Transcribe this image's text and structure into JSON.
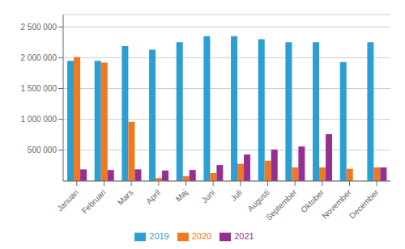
{
  "chart_data": {
    "type": "bar",
    "categories": [
      "Januari",
      "Februari",
      "Mars",
      "April",
      "Maj",
      "Juni",
      "Juli",
      "Augusti",
      "September",
      "Oktober",
      "November",
      "December"
    ],
    "series": [
      {
        "name": "2019",
        "color": "#2b9fd4",
        "values": [
          1950000,
          1950000,
          2190000,
          2130000,
          2250000,
          2350000,
          2350000,
          2300000,
          2250000,
          2250000,
          1930000,
          2250000
        ]
      },
      {
        "name": "2020",
        "color": "#f07820",
        "values": [
          2010000,
          1920000,
          960000,
          50000,
          80000,
          130000,
          280000,
          330000,
          220000,
          220000,
          200000,
          220000
        ]
      },
      {
        "name": "2021",
        "color": "#963090",
        "values": [
          190000,
          180000,
          190000,
          170000,
          180000,
          260000,
          430000,
          510000,
          560000,
          760000,
          0,
          220000
        ]
      }
    ],
    "ylim": [
      0,
      2700000
    ],
    "yticks": [
      {
        "value": 500000,
        "label": "500 000"
      },
      {
        "value": 1000000,
        "label": "1 000 000"
      },
      {
        "value": 1500000,
        "label": "1 500 000"
      },
      {
        "value": 2000000,
        "label": "2 000 000"
      },
      {
        "value": 2500000,
        "label": "2 500 000"
      }
    ],
    "grid": true,
    "legend": "bottom"
  }
}
